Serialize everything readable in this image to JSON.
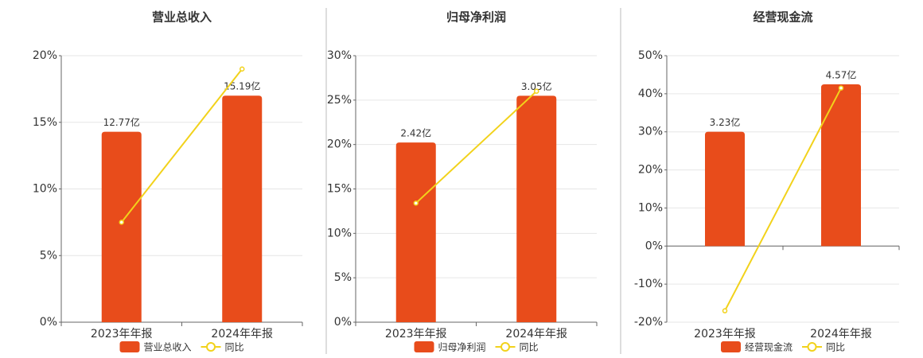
{
  "chart_data": [
    {
      "type": "bar-line",
      "title": "营业总收入",
      "categories": [
        "2023年年报",
        "2024年年报"
      ],
      "series": [
        {
          "name": "营业总收入",
          "color": "#e84c1b",
          "type": "bar",
          "axis": "y2",
          "values": [
            12.77,
            15.19
          ],
          "value_labels": [
            "12.77亿",
            "15.19亿"
          ]
        },
        {
          "name": "同比",
          "color": "#f2d21b",
          "type": "line",
          "values": [
            7.5,
            19.0
          ]
        }
      ],
      "ylim": [
        0,
        20
      ],
      "yticks": [
        {
          "value": 0,
          "label": "0%"
        },
        {
          "value": 5,
          "label": "5%"
        },
        {
          "value": 10,
          "label": "10%"
        },
        {
          "value": 15,
          "label": "15%"
        },
        {
          "value": 20,
          "label": "20%"
        }
      ],
      "y2lim": [
        0,
        17.87
      ],
      "grid": true
    },
    {
      "type": "bar-line",
      "title": "归母净利润",
      "categories": [
        "2023年年报",
        "2024年年报"
      ],
      "series": [
        {
          "name": "归母净利润",
          "color": "#e84c1b",
          "type": "bar",
          "axis": "y2",
          "values": [
            2.42,
            3.05
          ],
          "value_labels": [
            "2.42亿",
            "3.05亿"
          ]
        },
        {
          "name": "同比",
          "color": "#f2d21b",
          "type": "line",
          "values": [
            13.4,
            26.0
          ]
        }
      ],
      "ylim": [
        0,
        30
      ],
      "yticks": [
        {
          "value": 0,
          "label": "0%"
        },
        {
          "value": 5,
          "label": "5%"
        },
        {
          "value": 10,
          "label": "10%"
        },
        {
          "value": 15,
          "label": "15%"
        },
        {
          "value": 20,
          "label": "20%"
        },
        {
          "value": 25,
          "label": "25%"
        },
        {
          "value": 30,
          "label": "30%"
        }
      ],
      "y2lim": [
        0,
        3.59
      ],
      "grid": true
    },
    {
      "type": "bar-line",
      "title": "经营现金流",
      "categories": [
        "2023年年报",
        "2024年年报"
      ],
      "series": [
        {
          "name": "经营现金流",
          "color": "#e84c1b",
          "type": "bar",
          "axis": "y2",
          "values": [
            3.23,
            4.57
          ],
          "value_labels": [
            "3.23亿",
            "4.57亿"
          ]
        },
        {
          "name": "同比",
          "color": "#f2d21b",
          "type": "line",
          "values": [
            -17,
            41.5
          ]
        }
      ],
      "ylim": [
        -20,
        50
      ],
      "yticks": [
        {
          "value": -20,
          "label": "-20%"
        },
        {
          "value": -10,
          "label": "-10%"
        },
        {
          "value": 0,
          "label": "0%"
        },
        {
          "value": 10,
          "label": "10%"
        },
        {
          "value": 20,
          "label": "20%"
        },
        {
          "value": 30,
          "label": "30%"
        },
        {
          "value": 40,
          "label": "40%"
        },
        {
          "value": 50,
          "label": "50%"
        }
      ],
      "y2lim": [
        -2.15,
        5.38
      ],
      "grid": true
    }
  ]
}
